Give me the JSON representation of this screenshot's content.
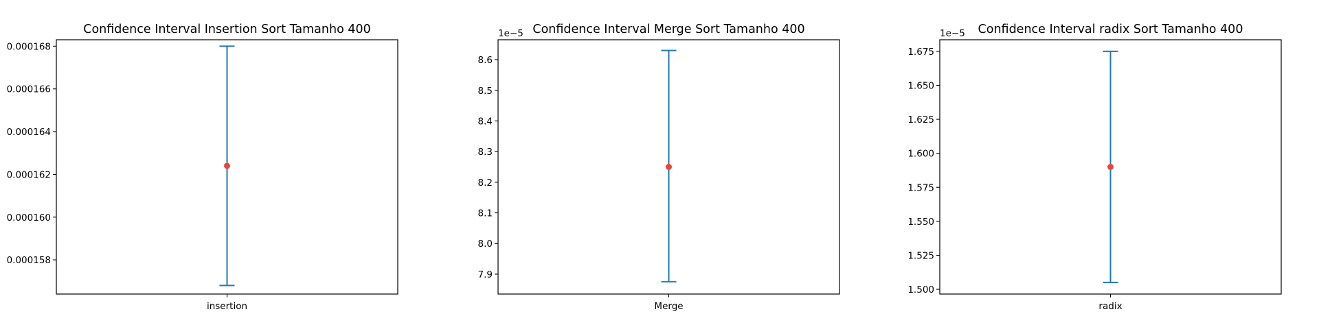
{
  "chart_data": [
    {
      "type": "errorbar",
      "title": "Confidence Interval Insertion Sort Tamanho 400",
      "category": "insertion",
      "mean": 0.0001624,
      "lower": 0.0001568,
      "upper": 0.000168,
      "ylim": [
        0.0001564,
        0.0001683
      ],
      "yticks": [
        0.000158,
        0.00016,
        0.000162,
        0.000164,
        0.000166,
        0.000168
      ],
      "ytick_labels": [
        "0.000158",
        "0.000160",
        "0.000162",
        "0.000164",
        "0.000166",
        "0.000168"
      ],
      "offset_text": "",
      "line_color": "#1f77b4",
      "mean_color": "#e8463a"
    },
    {
      "type": "errorbar",
      "title": "Confidence Interval Merge Sort Tamanho 400",
      "category": "Merge",
      "mean": 8.25e-05,
      "lower": 7.875e-05,
      "upper": 8.63e-05,
      "ylim": [
        7.835e-05,
        8.665e-05
      ],
      "yticks": [
        7.9e-05,
        8e-05,
        8.1e-05,
        8.2e-05,
        8.3e-05,
        8.4e-05,
        8.5e-05,
        8.6e-05
      ],
      "ytick_labels": [
        "7.9",
        "8.0",
        "8.1",
        "8.2",
        "8.3",
        "8.4",
        "8.5",
        "8.6"
      ],
      "offset_text": "1e−5",
      "line_color": "#1f77b4",
      "mean_color": "#e8463a"
    },
    {
      "type": "errorbar",
      "title": "Confidence Interval radix Sort Tamanho 400",
      "category": "radix",
      "mean": 1.59e-05,
      "lower": 1.505e-05,
      "upper": 1.675e-05,
      "ylim": [
        1.4965e-05,
        1.6835e-05
      ],
      "yticks": [
        1.5e-05,
        1.525e-05,
        1.55e-05,
        1.575e-05,
        1.6e-05,
        1.625e-05,
        1.65e-05,
        1.675e-05
      ],
      "ytick_labels": [
        "1.500",
        "1.525",
        "1.550",
        "1.575",
        "1.600",
        "1.625",
        "1.650",
        "1.675"
      ],
      "offset_text": "1e−5",
      "line_color": "#1f77b4",
      "mean_color": "#e8463a"
    }
  ]
}
